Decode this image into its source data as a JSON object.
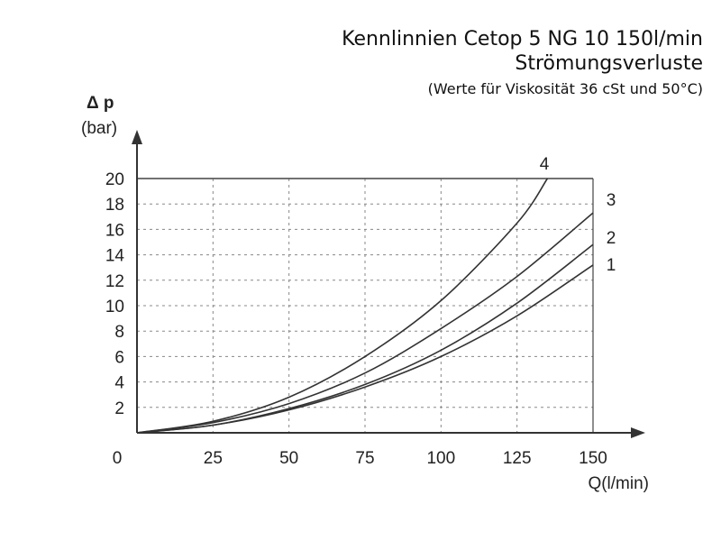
{
  "title": {
    "line1": "Kennlinnien Cetop 5 NG 10 150l/min",
    "line2": "Strömungsverluste",
    "line3": "(Werte für  Viskosität 36 cSt und 50°C)"
  },
  "chart_data": {
    "type": "line",
    "ylabel_symbol": "Δ p",
    "ylabel_unit": "(bar)",
    "xlabel": "Q(l/min)",
    "xlim": [
      0,
      150
    ],
    "ylim": [
      0,
      20
    ],
    "x_ticks": [
      "0",
      "25",
      "50",
      "75",
      "100",
      "125",
      "150"
    ],
    "y_ticks": [
      "2",
      "4",
      "6",
      "8",
      "10",
      "12",
      "14",
      "16",
      "18",
      "20"
    ],
    "grid": true,
    "series": [
      {
        "name": "1",
        "x": [
          0,
          25,
          50,
          75,
          100,
          125,
          150
        ],
        "y": [
          0,
          0.6,
          1.8,
          3.6,
          6.0,
          9.2,
          13.2
        ]
      },
      {
        "name": "2",
        "x": [
          0,
          25,
          50,
          75,
          100,
          125,
          150
        ],
        "y": [
          0,
          0.6,
          1.9,
          3.8,
          6.5,
          10.2,
          14.8
        ]
      },
      {
        "name": "3",
        "x": [
          0,
          25,
          50,
          75,
          100,
          125,
          150
        ],
        "y": [
          0,
          0.8,
          2.3,
          4.7,
          8.2,
          12.3,
          17.3
        ]
      },
      {
        "name": "4",
        "x": [
          0,
          25,
          50,
          75,
          100,
          125,
          135
        ],
        "y": [
          0,
          0.9,
          2.8,
          6.0,
          10.4,
          16.5,
          20.0
        ]
      }
    ]
  }
}
